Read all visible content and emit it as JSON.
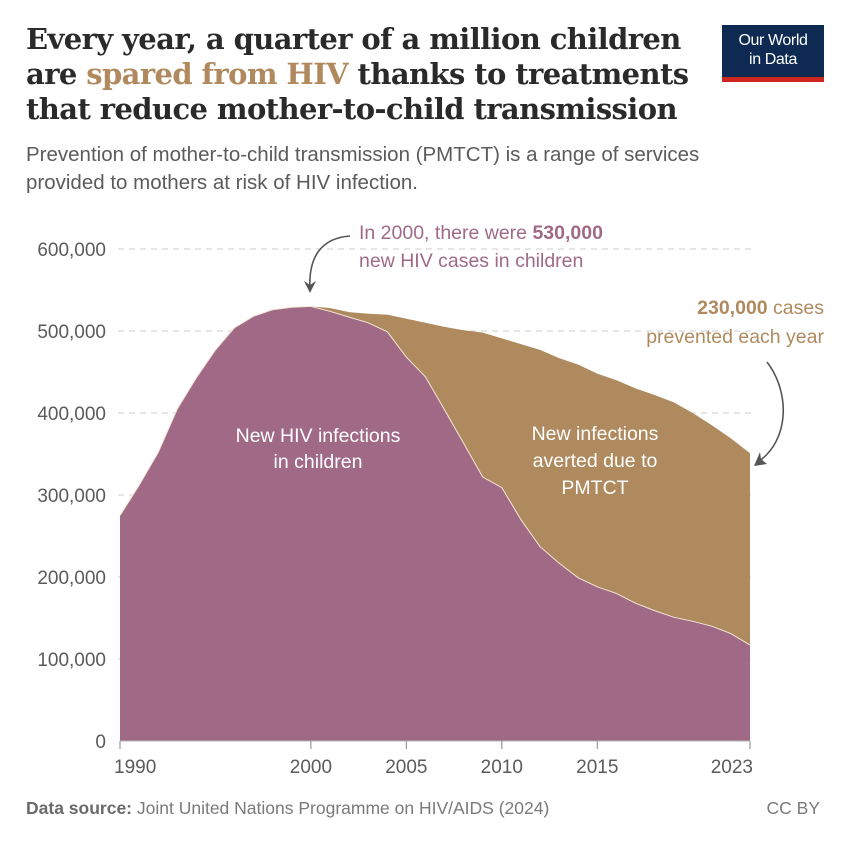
{
  "header": {
    "title_part1": "Every year, a quarter of a million children are ",
    "title_highlight": "spared from HIV",
    "title_part2": " thanks to treatments that reduce mother-to-child transmission",
    "subtitle": "Prevention of mother-to-child transmission (PMTCT) is a range of services provided to mothers at risk of HIV infection.",
    "logo_line1": "Our World",
    "logo_line2": "in Data"
  },
  "footer": {
    "source_label": "Data source:",
    "source_text": " Joint United Nations Programme on HIV/AIDS (2024)",
    "license": "CC BY"
  },
  "colors": {
    "infections": "#a06a86",
    "averted": "#ae8a5e",
    "highlight": "#b08a5e",
    "logo_bg": "#0e2a52",
    "logo_bar": "#ce261e"
  },
  "chart_data": {
    "type": "area",
    "stacked": true,
    "title": "Every year, a quarter of a million children are spared from HIV thanks to treatments that reduce mother-to-child transmission",
    "xlabel": "",
    "ylabel": "",
    "xlim": [
      1990,
      2023
    ],
    "ylim": [
      0,
      600000
    ],
    "grid": true,
    "x_ticks": [
      "1990",
      "2000",
      "2005",
      "2010",
      "2015",
      "2023"
    ],
    "y_ticks": [
      "0",
      "100,000",
      "200,000",
      "300,000",
      "400,000",
      "500,000",
      "600,000"
    ],
    "x_tick_values": [
      1990,
      2000,
      2005,
      2010,
      2015,
      2023
    ],
    "y_tick_values": [
      0,
      100000,
      200000,
      300000,
      400000,
      500000,
      600000
    ],
    "x": [
      1990,
      1991,
      1992,
      1993,
      1994,
      1995,
      1996,
      1997,
      1998,
      1999,
      2000,
      2001,
      2002,
      2003,
      2004,
      2005,
      2006,
      2007,
      2008,
      2009,
      2010,
      2011,
      2012,
      2013,
      2014,
      2015,
      2016,
      2017,
      2018,
      2019,
      2020,
      2021,
      2022,
      2023
    ],
    "series": [
      {
        "name": "New HIV infections in children",
        "label_lines": [
          "New HIV infections",
          "in children"
        ],
        "values": [
          275000,
          312000,
          352000,
          405000,
          443000,
          477000,
          504000,
          518000,
          526000,
          529000,
          530000,
          524000,
          517000,
          510000,
          499000,
          468000,
          444000,
          404000,
          363000,
          322000,
          309000,
          270000,
          237000,
          217000,
          199000,
          188000,
          180000,
          168000,
          159000,
          151000,
          146000,
          140000,
          131000,
          117000
        ]
      },
      {
        "name": "New infections averted due to PMTCT",
        "label_lines": [
          "New infections",
          "averted due to",
          "PMTCT"
        ],
        "values": [
          0,
          0,
          0,
          0,
          0,
          0,
          0,
          0,
          0,
          0,
          0,
          4000,
          6000,
          11000,
          21000,
          47000,
          66000,
          101000,
          138000,
          176000,
          182000,
          214000,
          240000,
          250000,
          260000,
          260000,
          260000,
          262000,
          263000,
          262000,
          254000,
          245000,
          238000,
          234000
        ]
      }
    ],
    "annotations": [
      {
        "text_parts": [
          "In 2000, there were ",
          "530,000",
          "new HIV cases in children"
        ],
        "points_to": {
          "x": 2000,
          "y": 530000
        }
      },
      {
        "text_parts": [
          "230,000",
          " cases",
          "prevented each year"
        ],
        "points_to": {
          "x": 2023,
          "y": 351000
        }
      }
    ]
  }
}
